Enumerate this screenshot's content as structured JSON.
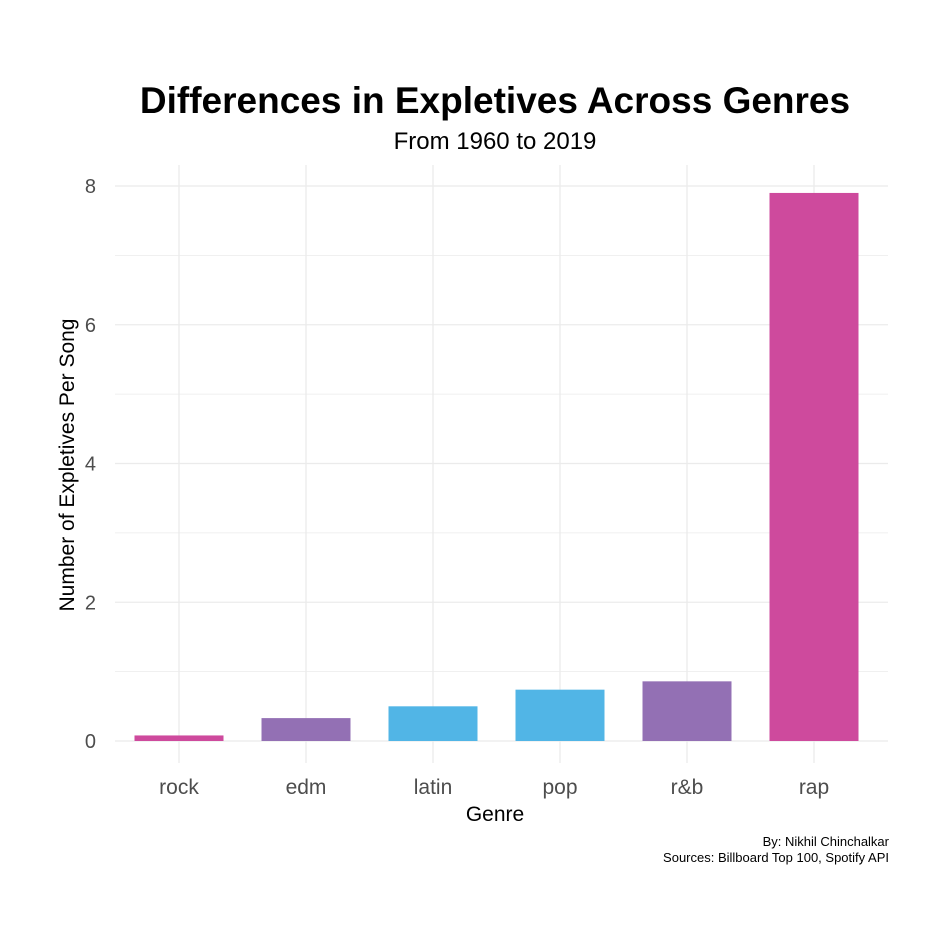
{
  "title": "Differences in Expletives Across Genres",
  "subtitle": "From 1960 to 2019",
  "caption": {
    "line1": "By: Nikhil Chinchalkar",
    "line2": "Sources: Billboard Top 100, Spotify API"
  },
  "colors": {
    "magenta": "#CE4A9D",
    "purple": "#9370B4",
    "blue": "#51B5E6",
    "grid": "#EBEBEB",
    "tick_text": "#4D4D4D"
  },
  "chart_data": {
    "type": "bar",
    "categories": [
      "rock",
      "edm",
      "latin",
      "pop",
      "r&b",
      "rap"
    ],
    "values": [
      0.08,
      0.33,
      0.5,
      0.74,
      0.86,
      7.9
    ],
    "bar_colors": [
      "#CE4A9D",
      "#9370B4",
      "#51B5E6",
      "#51B5E6",
      "#9370B4",
      "#CE4A9D"
    ],
    "title": "Differences in Expletives Across Genres",
    "subtitle": "From 1960 to 2019",
    "xlabel": "Genre",
    "ylabel": "Number of Expletives Per Song",
    "ylim": [
      0,
      8
    ],
    "yticks": [
      0,
      2,
      4,
      6,
      8
    ],
    "grid": true,
    "legend": "none"
  }
}
